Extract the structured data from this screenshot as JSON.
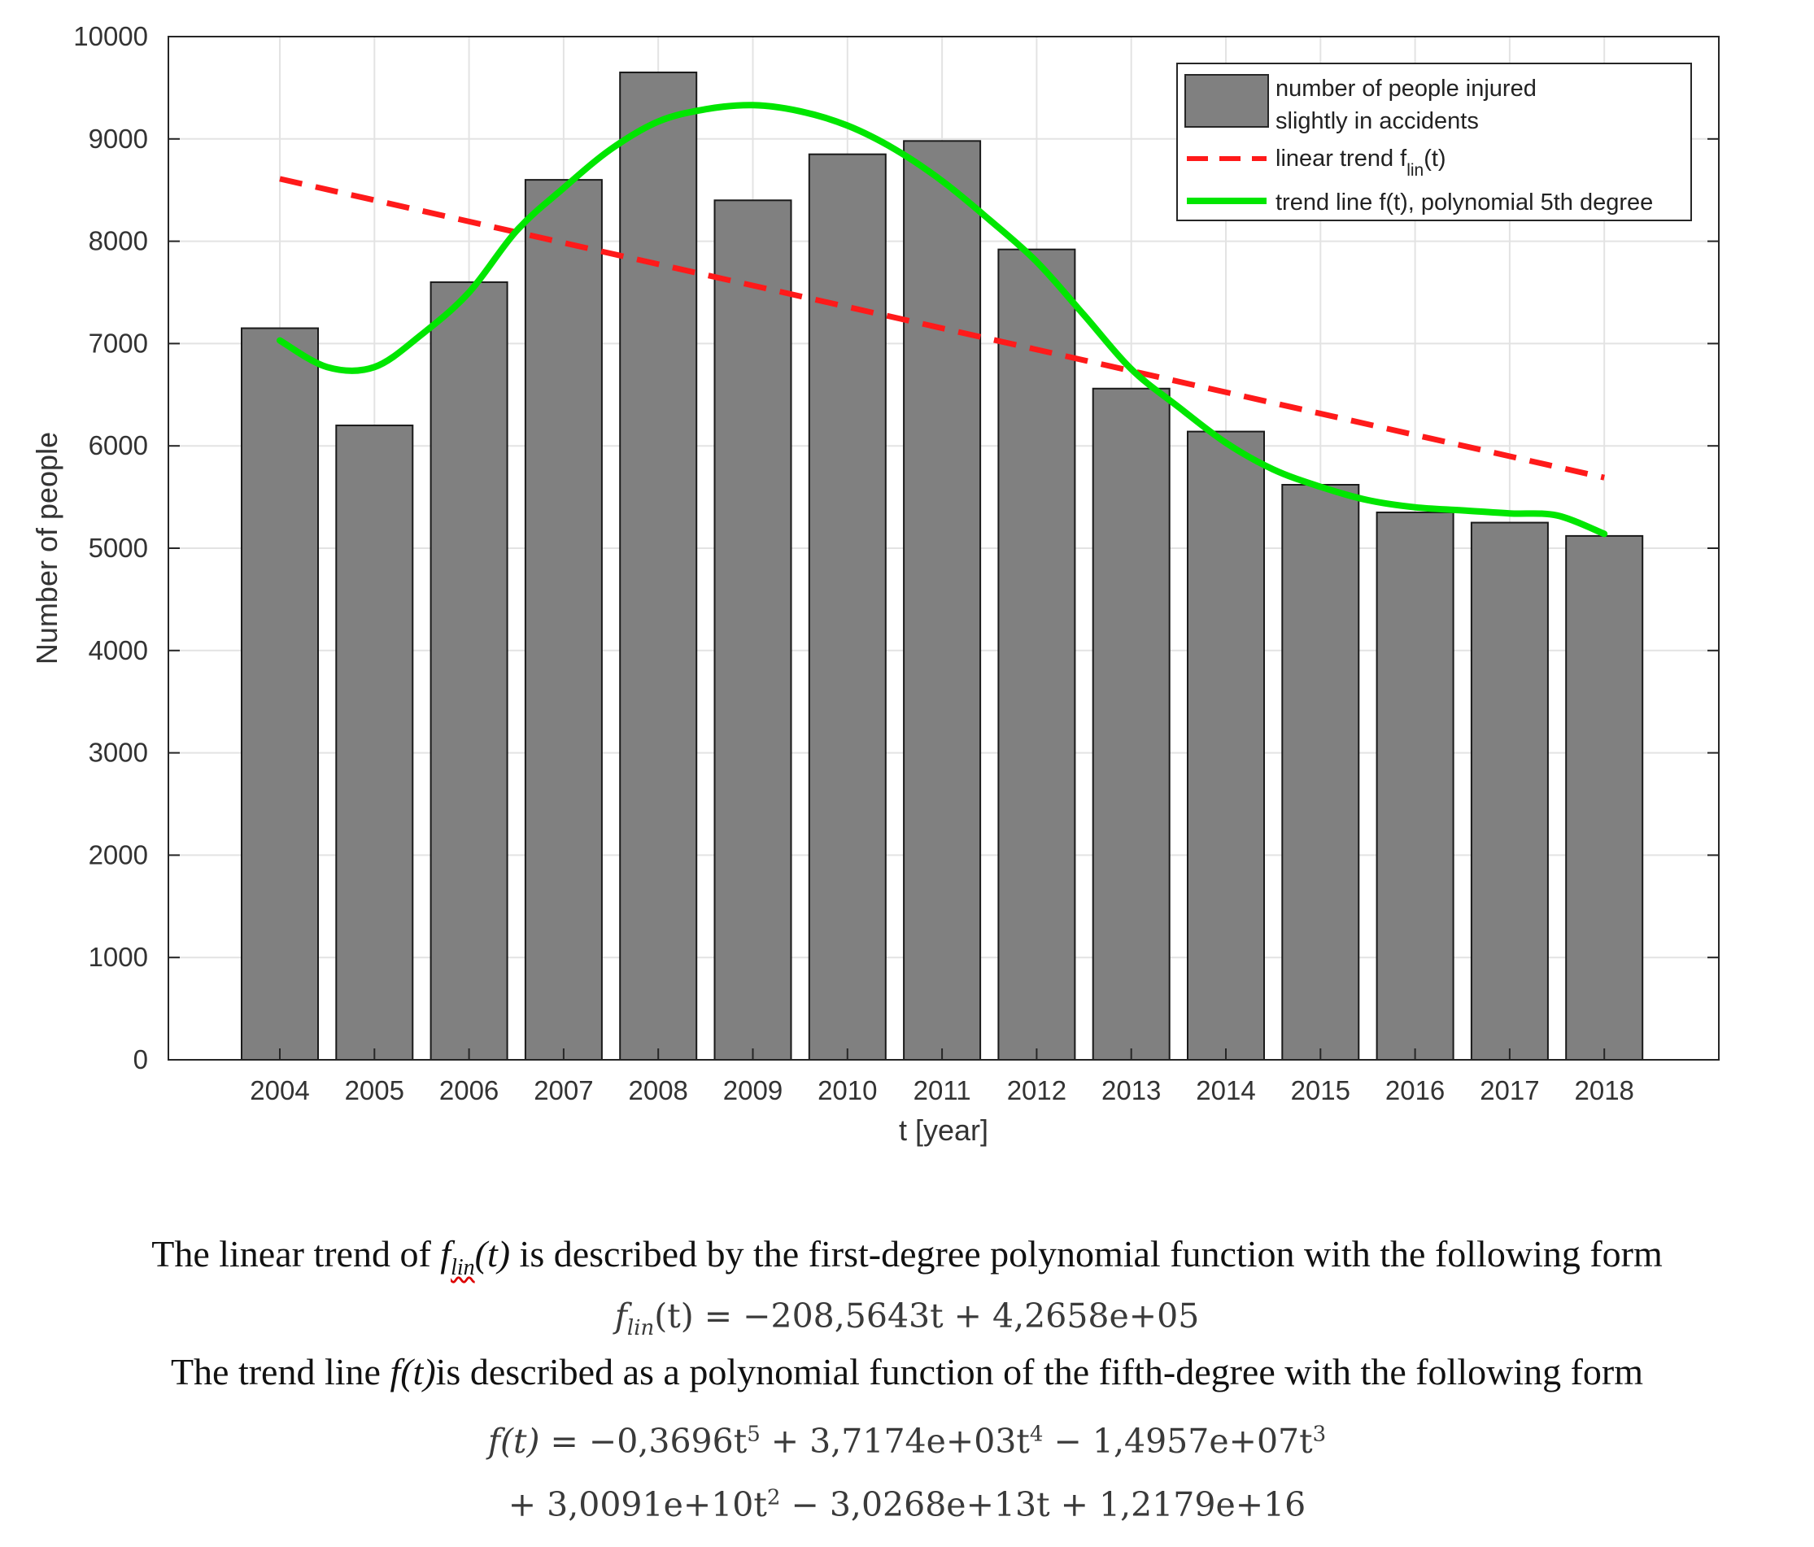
{
  "chart_data": {
    "type": "bar",
    "title": "",
    "xlabel": "t [year]",
    "ylabel": "Number of people",
    "ylim": [
      0,
      10000
    ],
    "yticks": [
      0,
      1000,
      2000,
      3000,
      4000,
      5000,
      6000,
      7000,
      8000,
      9000,
      10000
    ],
    "grid": true,
    "legend_position": "top-right",
    "categories": [
      "2004",
      "2005",
      "2006",
      "2007",
      "2008",
      "2009",
      "2010",
      "2011",
      "2012",
      "2013",
      "2014",
      "2015",
      "2016",
      "2017",
      "2018"
    ],
    "series": [
      {
        "name": "number of people injured slightly in accidents",
        "legend_lines": [
          "number of people injured",
          "slightly in accidents"
        ],
        "type": "bar",
        "color": "#808080",
        "values": [
          7150,
          6200,
          7600,
          8600,
          9650,
          8400,
          8850,
          8980,
          7920,
          6560,
          6140,
          5620,
          5350,
          5250,
          5120
        ]
      },
      {
        "name": "linear trend f_lin(t)",
        "legend_main": "linear trend f",
        "legend_sub": "lin",
        "legend_suffix": "(t)",
        "type": "line",
        "style": "dashed",
        "color": "#ff1a1a",
        "x": [
          2004,
          2018
        ],
        "values": [
          8610,
          5690
        ]
      },
      {
        "name": "trend line f(t), polynomial 5th degree",
        "type": "line",
        "style": "solid",
        "color": "#00e600",
        "x": [
          2004,
          2004.5,
          2005,
          2005.5,
          2006,
          2006.5,
          2007,
          2007.5,
          2008,
          2008.5,
          2009,
          2009.5,
          2010,
          2010.5,
          2011,
          2011.5,
          2012,
          2012.5,
          2013,
          2013.5,
          2014,
          2014.5,
          2015,
          2015.5,
          2016,
          2016.5,
          2017,
          2017.5,
          2018
        ],
        "values": [
          7030,
          6770,
          6770,
          7090,
          7500,
          8100,
          8520,
          8900,
          9170,
          9290,
          9330,
          9270,
          9130,
          8900,
          8590,
          8210,
          7800,
          7280,
          6750,
          6380,
          6030,
          5770,
          5600,
          5470,
          5400,
          5370,
          5340,
          5320,
          5140
        ]
      }
    ]
  },
  "text": {
    "caption_linear_pre": "The linear trend of ",
    "caption_linear_func": "f",
    "caption_linear_sub": "lin",
    "caption_linear_arg": "(t)",
    "caption_linear_post": " is described by the first-degree polynomial function with the following form",
    "eq_linear_lhs": "f",
    "eq_linear_sub": "lin",
    "eq_linear_arg": "(t) = ",
    "eq_linear_rhs": "−208,5643t +  4,2658e+05",
    "caption_poly_pre": "The trend line ",
    "caption_poly_func": "f(t)",
    "caption_poly_post": "is described as a polynomial function of the fifth-degree with the following form",
    "eq_poly_lhs": "f(t) = ",
    "eq_poly_t1": "−0,3696t",
    "eq_poly_e1": "5",
    "eq_poly_t2": " + 3,7174e+03t",
    "eq_poly_e2": "4",
    "eq_poly_t3": " − 1,4957e+07t",
    "eq_poly_e3": "3",
    "eq_poly_t4": "+ 3,0091e+10t",
    "eq_poly_e4": "2",
    "eq_poly_t5": " − 3,0268e+13t + 1,2179e+16"
  }
}
